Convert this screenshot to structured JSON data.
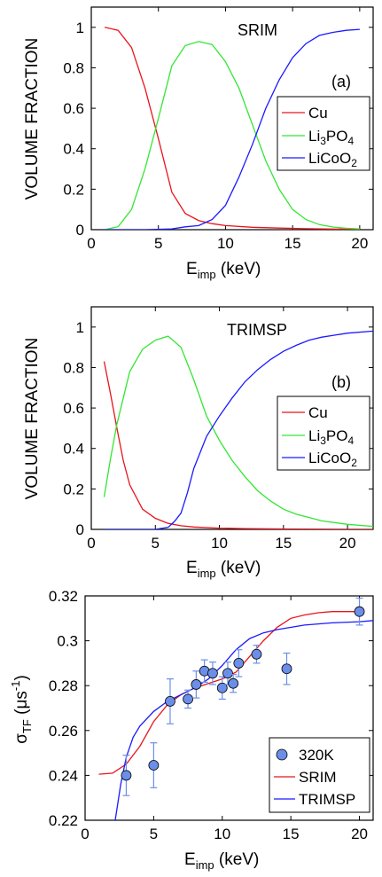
{
  "chart_data": [
    {
      "type": "line",
      "title": "SRIM",
      "panel_label": "(a)",
      "xlabel_main": "E",
      "xlabel_sub": "imp",
      "xlabel_rest": " (keV)",
      "ylabel": "VOLUME FRACTION",
      "xlim": [
        0,
        21
      ],
      "ylim": [
        0,
        1.1
      ],
      "xticks": [
        0,
        5,
        10,
        15,
        20
      ],
      "xtick_labels": [
        "0",
        "5",
        "10",
        "15",
        "20"
      ],
      "yticks": [
        0,
        0.2,
        0.4,
        0.6,
        0.8,
        1
      ],
      "ytick_labels": [
        "0",
        "0.2",
        "0.4",
        "0.6",
        "0.8",
        "1"
      ],
      "legend": "right",
      "series": [
        {
          "name": "Cu",
          "label_main": "Cu",
          "label_sub": "",
          "label_tail": "",
          "color": "#e8141c",
          "x": [
            1,
            2,
            3,
            4,
            5,
            6,
            7,
            8,
            9,
            10,
            12,
            14,
            16,
            18,
            20
          ],
          "y": [
            1.0,
            0.985,
            0.9,
            0.7,
            0.45,
            0.185,
            0.08,
            0.045,
            0.03,
            0.02,
            0.012,
            0.008,
            0.005,
            0.003,
            0.002
          ]
        },
        {
          "name": "Li3PO4",
          "label_main": "Li",
          "label_sub": "3",
          "label_tail": "PO4",
          "label_tail_sub": "4",
          "color": "#33e633",
          "x": [
            1,
            2,
            3,
            4,
            5,
            6,
            7,
            8,
            9,
            10,
            11,
            12,
            13,
            14,
            15,
            16,
            17,
            18,
            19,
            20
          ],
          "y": [
            0.0,
            0.015,
            0.1,
            0.3,
            0.55,
            0.81,
            0.91,
            0.93,
            0.915,
            0.83,
            0.7,
            0.52,
            0.34,
            0.2,
            0.1,
            0.05,
            0.025,
            0.013,
            0.007,
            0.004
          ]
        },
        {
          "name": "LiCoO2",
          "label_main": "LiCoO",
          "label_sub": "2",
          "label_tail": "",
          "color": "#1a1aff",
          "x": [
            1,
            4,
            6,
            7,
            8,
            9,
            10,
            11,
            12,
            13,
            14,
            15,
            16,
            17,
            18,
            19,
            20
          ],
          "y": [
            0.0,
            0.0,
            0.004,
            0.014,
            0.02,
            0.05,
            0.12,
            0.26,
            0.42,
            0.6,
            0.74,
            0.85,
            0.92,
            0.96,
            0.975,
            0.985,
            0.99
          ]
        }
      ]
    },
    {
      "type": "line",
      "title": "TRIMSP",
      "panel_label": "(b)",
      "xlabel_main": "E",
      "xlabel_sub": "imp",
      "xlabel_rest": " (keV)",
      "ylabel": "VOLUME FRACTION",
      "xlim": [
        0,
        22
      ],
      "ylim": [
        0,
        1.1
      ],
      "xticks": [
        0,
        5,
        10,
        15,
        20
      ],
      "xtick_labels": [
        "0",
        "5",
        "10",
        "15",
        "20"
      ],
      "yticks": [
        0,
        0.2,
        0.4,
        0.6,
        0.8,
        1
      ],
      "ytick_labels": [
        "0",
        "0.2",
        "0.4",
        "0.6",
        "0.8",
        "1"
      ],
      "legend": "right",
      "series": [
        {
          "name": "Cu",
          "color": "#e8141c",
          "x": [
            1,
            1.5,
            2,
            2.5,
            3,
            4,
            5,
            6,
            7,
            8,
            10,
            12,
            15,
            18,
            22
          ],
          "y": [
            0.83,
            0.67,
            0.5,
            0.34,
            0.22,
            0.1,
            0.055,
            0.03,
            0.018,
            0.012,
            0.006,
            0.004,
            0.002,
            0.001,
            0.0
          ]
        },
        {
          "name": "Li3PO4",
          "color": "#33e633",
          "x": [
            1,
            1.5,
            2,
            3,
            4,
            5,
            6,
            7,
            8,
            9,
            10,
            11,
            12,
            13,
            14,
            15,
            16,
            18,
            20,
            22
          ],
          "y": [
            0.16,
            0.35,
            0.52,
            0.78,
            0.89,
            0.935,
            0.955,
            0.9,
            0.74,
            0.56,
            0.44,
            0.34,
            0.26,
            0.19,
            0.14,
            0.1,
            0.075,
            0.042,
            0.025,
            0.015
          ]
        },
        {
          "name": "LiCoO2",
          "color": "#1a1aff",
          "x": [
            1,
            5,
            6,
            6.5,
            7,
            7.5,
            8,
            9,
            10,
            11,
            12,
            13,
            14,
            15,
            16,
            17,
            18,
            20,
            22
          ],
          "y": [
            0.0,
            0.0,
            0.01,
            0.04,
            0.08,
            0.18,
            0.3,
            0.46,
            0.56,
            0.65,
            0.73,
            0.79,
            0.84,
            0.88,
            0.91,
            0.935,
            0.95,
            0.97,
            0.98
          ]
        }
      ]
    },
    {
      "type": "scatter",
      "ylabel_main": "σ",
      "ylabel_sub": "TF",
      "ylabel_rest": " (μs",
      "ylabel_sup": "-1",
      "ylabel_end": ")",
      "xlabel_main": "E",
      "xlabel_sub": "imp",
      "xlabel_rest": " (keV)",
      "xlim": [
        0,
        21
      ],
      "ylim": [
        0.22,
        0.32
      ],
      "xticks": [
        0,
        5,
        10,
        15,
        20
      ],
      "xtick_labels": [
        "0",
        "5",
        "10",
        "15",
        "20"
      ],
      "yticks": [
        0.22,
        0.24,
        0.26,
        0.28,
        0.3,
        0.32
      ],
      "ytick_labels": [
        "0.22",
        "0.24",
        "0.26",
        "0.28",
        "0.3",
        "0.32"
      ],
      "legend": "bottom-right",
      "points": {
        "name": "320K",
        "color": "#6b8fe8",
        "err_color": "#6b8fe8",
        "x": [
          3,
          5,
          6.2,
          7.5,
          8.1,
          8.7,
          9.3,
          10.0,
          10.4,
          10.8,
          11.2,
          12.5,
          14.7,
          20.0
        ],
        "y": [
          0.24,
          0.2445,
          0.273,
          0.274,
          0.2805,
          0.2865,
          0.2855,
          0.279,
          0.2855,
          0.281,
          0.29,
          0.294,
          0.2875,
          0.313
        ],
        "err": [
          0.009,
          0.01,
          0.01,
          0.004,
          0.006,
          0.005,
          0.005,
          0.005,
          0.005,
          0.004,
          0.006,
          0.004,
          0.007,
          0.006
        ]
      },
      "series": [
        {
          "name": "SRIM",
          "color": "#e8141c",
          "x": [
            1,
            2,
            3,
            4,
            5,
            6,
            7,
            8,
            9,
            10,
            11,
            12,
            13,
            14,
            15,
            16,
            17,
            18,
            19,
            20
          ],
          "y": [
            0.2405,
            0.241,
            0.245,
            0.253,
            0.264,
            0.2715,
            0.276,
            0.279,
            0.281,
            0.283,
            0.286,
            0.293,
            0.3,
            0.306,
            0.31,
            0.3115,
            0.3125,
            0.313,
            0.313,
            0.313
          ]
        },
        {
          "name": "TRIMSP",
          "color": "#1a1aff",
          "x": [
            2.2,
            2.6,
            3,
            3.5,
            4,
            5,
            6,
            7,
            8,
            9,
            10,
            11,
            12,
            13,
            14,
            16,
            18,
            20,
            21
          ],
          "y": [
            0.22,
            0.236,
            0.248,
            0.257,
            0.262,
            0.2685,
            0.273,
            0.276,
            0.279,
            0.283,
            0.289,
            0.296,
            0.301,
            0.3035,
            0.305,
            0.307,
            0.308,
            0.3085,
            0.309
          ]
        }
      ]
    }
  ]
}
